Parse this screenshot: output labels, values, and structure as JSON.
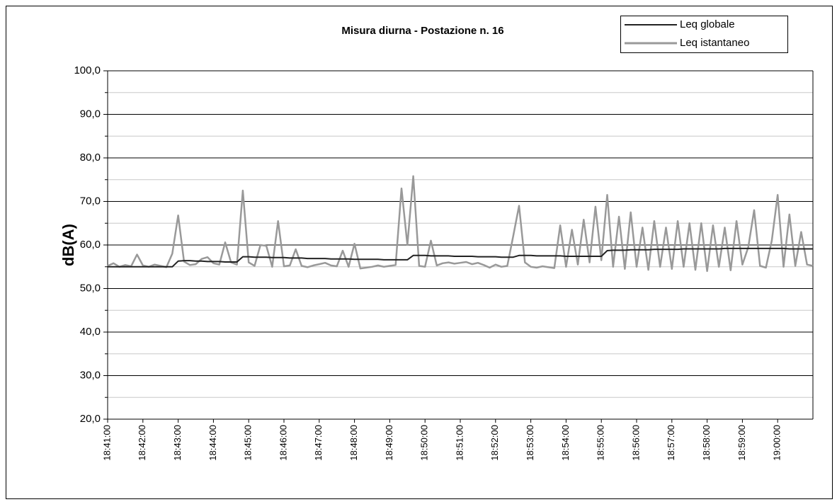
{
  "chart_data": {
    "type": "line",
    "title": "Misura diurna - Postazione n. 16",
    "y_label": "dB(A)",
    "x": [
      "18:41:00",
      "18:41:10",
      "18:41:20",
      "18:41:30",
      "18:41:40",
      "18:41:50",
      "18:42:00",
      "18:42:10",
      "18:42:20",
      "18:42:30",
      "18:42:40",
      "18:42:50",
      "18:43:00",
      "18:43:10",
      "18:43:20",
      "18:43:30",
      "18:43:40",
      "18:43:50",
      "18:44:00",
      "18:44:10",
      "18:44:20",
      "18:44:30",
      "18:44:40",
      "18:44:50",
      "18:45:00",
      "18:45:10",
      "18:45:20",
      "18:45:30",
      "18:45:40",
      "18:45:50",
      "18:46:00",
      "18:46:10",
      "18:46:20",
      "18:46:30",
      "18:46:40",
      "18:46:50",
      "18:47:00",
      "18:47:10",
      "18:47:20",
      "18:47:30",
      "18:47:40",
      "18:47:50",
      "18:48:00",
      "18:48:10",
      "18:48:20",
      "18:48:30",
      "18:48:40",
      "18:48:50",
      "18:49:00",
      "18:49:10",
      "18:49:20",
      "18:49:30",
      "18:49:40",
      "18:49:50",
      "18:50:00",
      "18:50:10",
      "18:50:20",
      "18:50:30",
      "18:50:40",
      "18:50:50",
      "18:51:00",
      "18:51:10",
      "18:51:20",
      "18:51:30",
      "18:51:40",
      "18:51:50",
      "18:52:00",
      "18:52:10",
      "18:52:20",
      "18:52:30",
      "18:52:40",
      "18:52:50",
      "18:53:00",
      "18:53:10",
      "18:53:20",
      "18:53:30",
      "18:53:40",
      "18:53:50",
      "18:54:00",
      "18:54:10",
      "18:54:20",
      "18:54:30",
      "18:54:40",
      "18:54:50",
      "18:55:00",
      "18:55:10",
      "18:55:20",
      "18:55:30",
      "18:55:40",
      "18:55:50",
      "18:56:00",
      "18:56:10",
      "18:56:20",
      "18:56:30",
      "18:56:40",
      "18:56:50",
      "18:57:00",
      "18:57:10",
      "18:57:20",
      "18:57:30",
      "18:57:40",
      "18:57:50",
      "18:58:00",
      "18:58:10",
      "18:58:20",
      "18:58:30",
      "18:58:40",
      "18:58:50",
      "18:59:00",
      "18:59:10",
      "18:59:20",
      "18:59:30",
      "18:59:40",
      "18:59:50",
      "19:00:00",
      "19:00:10",
      "19:00:20",
      "19:00:30",
      "19:00:40",
      "19:00:50",
      "19:01:00"
    ],
    "series": [
      {
        "name": "Leq globale",
        "color": "#222222",
        "values": [
          55.0,
          55.0,
          55.0,
          55.0,
          55.0,
          55.0,
          55.0,
          55.0,
          55.0,
          55.0,
          55.0,
          55.0,
          56.3,
          56.4,
          56.4,
          56.3,
          56.3,
          56.2,
          56.2,
          56.2,
          56.1,
          56.1,
          56.1,
          57.3,
          57.3,
          57.2,
          57.2,
          57.2,
          57.1,
          57.1,
          57.1,
          57.0,
          57.0,
          57.0,
          56.9,
          56.9,
          56.9,
          56.9,
          56.8,
          56.8,
          56.8,
          56.8,
          56.7,
          56.7,
          56.7,
          56.7,
          56.7,
          56.6,
          56.6,
          56.6,
          56.6,
          56.6,
          57.6,
          57.6,
          57.6,
          57.5,
          57.5,
          57.5,
          57.5,
          57.4,
          57.4,
          57.4,
          57.4,
          57.3,
          57.3,
          57.3,
          57.3,
          57.2,
          57.2,
          57.2,
          57.6,
          57.6,
          57.6,
          57.5,
          57.5,
          57.5,
          57.5,
          57.5,
          57.4,
          57.4,
          57.4,
          57.4,
          57.4,
          57.4,
          57.4,
          58.7,
          58.8,
          58.8,
          58.8,
          58.9,
          58.9,
          58.9,
          58.9,
          59.0,
          59.0,
          59.0,
          59.0,
          59.0,
          59.1,
          59.1,
          59.1,
          59.1,
          59.1,
          59.1,
          59.1,
          59.2,
          59.2,
          59.2,
          59.2,
          59.2,
          59.2,
          59.2,
          59.2,
          59.2,
          59.2,
          59.2,
          59.1,
          59.1,
          59.1,
          59.1,
          59.1
        ]
      },
      {
        "name": "Leq istantaneo",
        "color": "#999999",
        "values": [
          55.2,
          55.8,
          55.0,
          55.4,
          55.1,
          57.8,
          55.3,
          55.0,
          55.5,
          55.2,
          54.9,
          58.0,
          66.8,
          56.2,
          55.4,
          55.6,
          56.8,
          57.2,
          55.8,
          55.5,
          60.6,
          56.0,
          55.5,
          72.5,
          56.0,
          55.2,
          60.0,
          59.8,
          55.0,
          65.5,
          55.1,
          55.3,
          59.0,
          55.2,
          54.9,
          55.3,
          55.6,
          55.9,
          55.3,
          55.1,
          58.7,
          55.0,
          60.3,
          54.6,
          54.8,
          55.0,
          55.3,
          55.0,
          55.2,
          55.4,
          73.0,
          60.0,
          75.8,
          55.2,
          55.0,
          61.0,
          55.3,
          55.8,
          56.0,
          55.7,
          55.9,
          56.1,
          55.6,
          55.9,
          55.4,
          54.8,
          55.5,
          55.0,
          55.2,
          62.0,
          69.0,
          56.0,
          55.0,
          54.8,
          55.1,
          54.9,
          54.7,
          64.5,
          55.0,
          63.5,
          55.5,
          65.8,
          56.0,
          68.8,
          56.5,
          71.5,
          55.0,
          66.5,
          54.5,
          67.5,
          55.0,
          64.0,
          54.3,
          65.5,
          55.0,
          64.0,
          54.5,
          65.5,
          55.0,
          65.0,
          54.3,
          65.0,
          54.0,
          64.5,
          55.0,
          64.0,
          54.2,
          65.5,
          55.5,
          59.5,
          68.0,
          55.2,
          54.8,
          61.0,
          71.5,
          55.0,
          67.0,
          55.2,
          63.0,
          55.5,
          55.2
        ]
      }
    ],
    "xlim": [
      "18:41:00",
      "19:01:00"
    ],
    "xticks": [
      "18:41:00",
      "18:42:00",
      "18:43:00",
      "18:44:00",
      "18:45:00",
      "18:46:00",
      "18:47:00",
      "18:48:00",
      "18:49:00",
      "18:50:00",
      "18:51:00",
      "18:52:00",
      "18:53:00",
      "18:54:00",
      "18:55:00",
      "18:56:00",
      "18:57:00",
      "18:58:00",
      "18:59:00",
      "19:00:00"
    ],
    "ylim": [
      20,
      100
    ],
    "yticks": [
      {
        "value": 20,
        "label": "20,0"
      },
      {
        "value": 30,
        "label": "30,0"
      },
      {
        "value": 40,
        "label": "40,0"
      },
      {
        "value": 50,
        "label": "50,0"
      },
      {
        "value": 60,
        "label": "60,0"
      },
      {
        "value": 70,
        "label": "70,0"
      },
      {
        "value": 80,
        "label": "80,0"
      },
      {
        "value": 90,
        "label": "90,0"
      },
      {
        "value": 100,
        "label": "100,0"
      }
    ],
    "yminorticks": [
      25,
      35,
      45,
      55,
      65,
      75,
      85,
      95
    ],
    "grid": true,
    "legend": "top-right"
  }
}
